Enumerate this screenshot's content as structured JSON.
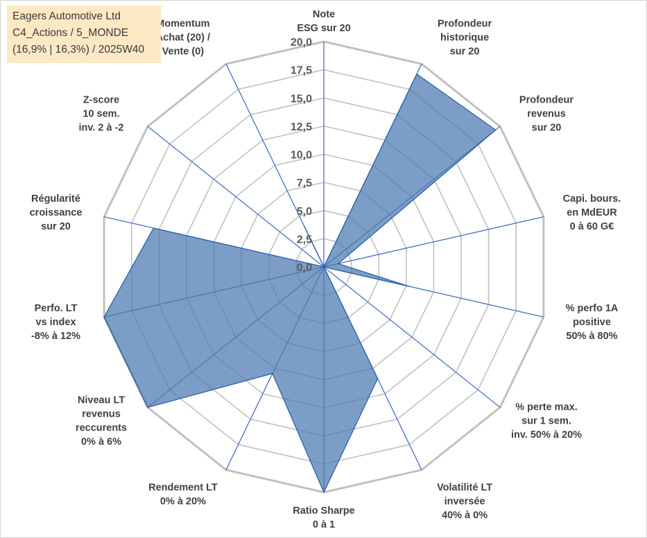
{
  "title": {
    "company": "Eagers Automotive Ltd",
    "portfolio": "C4_Actions / 5_MONDE",
    "stats": "(16,9% | 16,3%) / 2025W40"
  },
  "chart_data": {
    "type": "radar",
    "title": "Eagers Automotive Ltd",
    "rmin": 0,
    "rmax": 20,
    "tick_step": 2.5,
    "ticks": [
      "0,0",
      "2,5",
      "5,0",
      "7,5",
      "10,0",
      "12,5",
      "15,0",
      "17,5",
      "20,0"
    ],
    "categories": [
      [
        "Note",
        "ESG sur 20"
      ],
      [
        "Profondeur",
        "historique",
        "sur 20"
      ],
      [
        "Profondeur",
        "revenus",
        "sur 20"
      ],
      [
        "Capi. bours.",
        "en MdEUR",
        "0 à 60 G€"
      ],
      [
        "% perfo 1A",
        "positive",
        "50% à 80%"
      ],
      [
        "% perte max.",
        "sur 1 sem.",
        "inv. 50% à 20%"
      ],
      [
        "Volatilité LT",
        "inversée",
        "40% à 0%"
      ],
      [
        "Ratio Sharpe",
        "0 à 1"
      ],
      [
        "Rendement LT",
        "0% à 20%"
      ],
      [
        "Niveau LT",
        "revenus",
        "reccurents",
        "0% à 6%"
      ],
      [
        "Perfo. LT",
        "vs index",
        "-8% à 12%"
      ],
      [
        "Régularité",
        "croissance",
        "sur 20"
      ],
      [
        "Z-score",
        "10 sem.",
        "inv. 2 à -2"
      ],
      [
        "Momentum",
        "Achat (20) /",
        "Vente (0)"
      ]
    ],
    "series": [
      {
        "name": "Eagers Automotive Ltd",
        "color": "#4a78b0",
        "values": [
          0,
          19,
          19.5,
          1.3,
          7.8,
          0,
          11,
          20,
          10.5,
          20,
          20,
          15.5,
          0,
          4
        ]
      }
    ],
    "grid_color": "#c0c0c0",
    "axis_color": "#4472c4"
  }
}
